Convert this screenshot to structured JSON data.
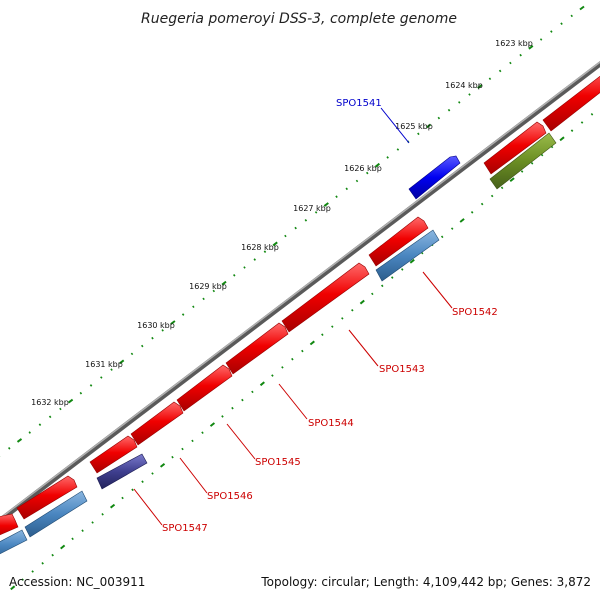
{
  "title": "Ruegeria pomeroyi DSS-3, complete genome",
  "footer": {
    "accession": "Accession: NC_003911",
    "summary": "Topology: circular; Length: 4,109,442 bp; Genes: 3,872"
  },
  "kbp_labels": [
    "1623 kbp",
    "1624 kbp",
    "1625 kbp",
    "1626 kbp",
    "1627 kbp",
    "1628 kbp",
    "1629 kbp",
    "1630 kbp",
    "1631 kbp",
    "1632 kbp"
  ],
  "gene_labels": {
    "spo1541": "SPO1541",
    "spo1542": "SPO1542",
    "spo1543": "SPO1543",
    "spo1544": "SPO1544",
    "spo1545": "SPO1545",
    "spo1546": "SPO1546",
    "spo1547": "SPO1547"
  },
  "colors": {
    "backbone": "#808080",
    "forward_cds": "#ee0000",
    "highlight_blue": "#0000ee",
    "steel_blue": "#4a86c0",
    "dark_slate": "#3f3f8f",
    "olive": "#6b8e23",
    "tick_green": "#118811",
    "label_red": "#cc0000",
    "label_blue": "#0000cc"
  }
}
